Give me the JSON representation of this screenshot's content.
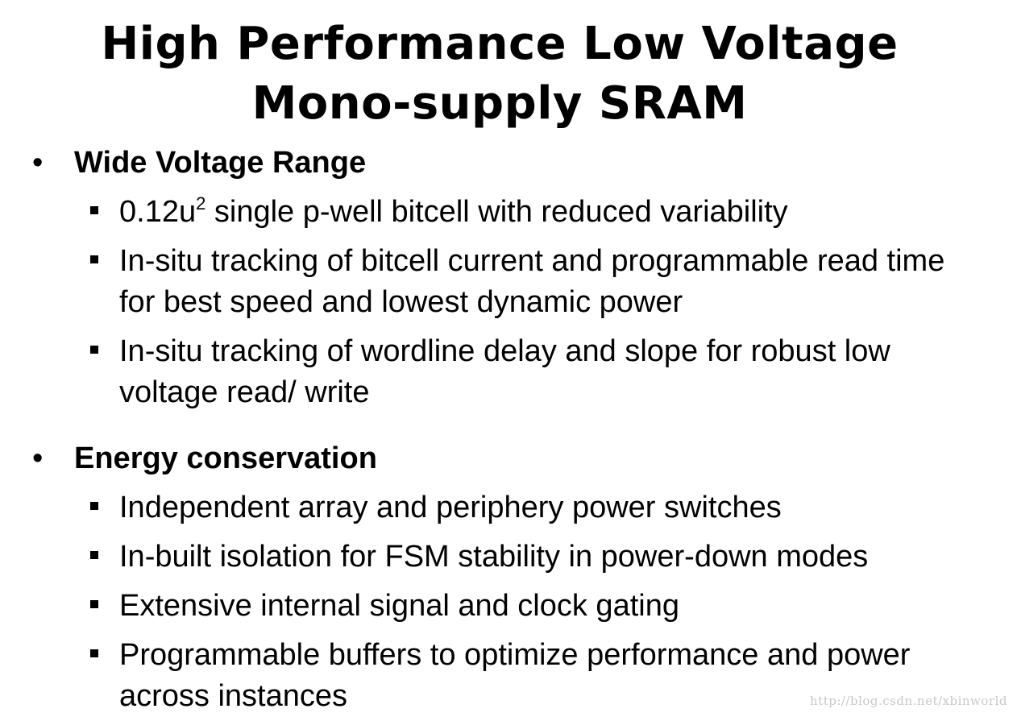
{
  "slide": {
    "title_line1": "High Performance Low Voltage",
    "title_line2": "Mono-supply SRAM"
  },
  "sections": [
    {
      "heading": "Wide Voltage Range",
      "items": [
        {
          "prefix": "0.12u",
          "sup": "2",
          "text": " single p-well bitcell with reduced variability"
        },
        {
          "text": "In-situ tracking of bitcell current and programmable read time for best speed and lowest dynamic power"
        },
        {
          "text": "In-situ tracking of wordline delay and slope for robust low voltage read/ write"
        }
      ]
    },
    {
      "heading": "Energy conservation",
      "items": [
        {
          "text": "Independent array and periphery power switches"
        },
        {
          "text": "In-built isolation for FSM stability in power-down modes"
        },
        {
          "text": "Extensive internal signal and clock gating"
        },
        {
          "text": "Programmable buffers to optimize performance and power across instances"
        }
      ]
    }
  ],
  "bullets": {
    "round": "•",
    "square": "■"
  },
  "watermark": "http://blog.csdn.net/xbinworld"
}
